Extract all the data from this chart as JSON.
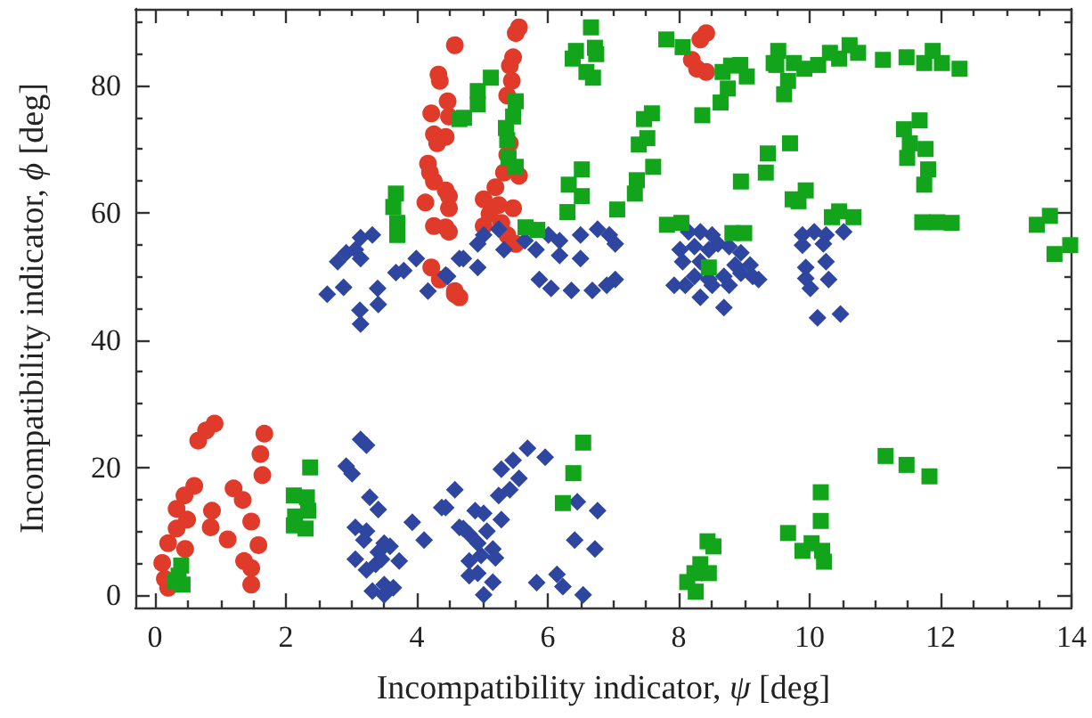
{
  "chart_data": {
    "type": "scatter",
    "xlabel": "Incompatibility indicator, ψ [deg]",
    "ylabel": "Incompatibility indicator, ϕ [deg]",
    "xlim": [
      -0.3,
      14
    ],
    "ylim": [
      -2,
      92
    ],
    "grid": false,
    "xticks": [
      0,
      {
        "value": 0.5,
        "label": null
      },
      {
        "value": 1,
        "label": null
      },
      {
        "value": 1.5,
        "label": null
      },
      2,
      {
        "value": 2.5,
        "label": null
      },
      {
        "value": 3,
        "label": null
      },
      {
        "value": 3.5,
        "label": null
      },
      4,
      {
        "value": 4.5,
        "label": null
      },
      {
        "value": 5,
        "label": null
      },
      {
        "value": 5.5,
        "label": null
      },
      6,
      {
        "value": 6.5,
        "label": null
      },
      {
        "value": 7,
        "label": null
      },
      {
        "value": 7.5,
        "label": null
      },
      8,
      {
        "value": 8.5,
        "label": null
      },
      {
        "value": 9,
        "label": null
      },
      {
        "value": 9.5,
        "label": null
      },
      10,
      {
        "value": 10.5,
        "label": null
      },
      {
        "value": 11,
        "label": null
      },
      {
        "value": 11.5,
        "label": null
      },
      12,
      {
        "value": 12.5,
        "label": null
      },
      {
        "value": 13,
        "label": null
      },
      {
        "value": 13.5,
        "label": null
      },
      14
    ],
    "yticks": [
      0,
      {
        "value": 5,
        "label": null
      },
      {
        "value": 10,
        "label": null
      },
      {
        "value": 15,
        "label": null
      },
      20,
      {
        "value": 25,
        "label": null
      },
      {
        "value": 30,
        "label": null
      },
      {
        "value": 35,
        "label": null
      },
      40,
      {
        "value": 45,
        "label": null
      },
      {
        "value": 50,
        "label": null
      },
      {
        "value": 55,
        "label": null
      },
      60,
      {
        "value": 65,
        "label": null
      },
      {
        "value": 70,
        "label": null
      },
      {
        "value": 75,
        "label": null
      },
      80,
      {
        "value": 85,
        "label": null
      },
      {
        "value": 90,
        "label": null
      }
    ],
    "series": [
      {
        "color": "#e03a2a",
        "marker": "circle",
        "x": [
          0.91,
          0.78,
          0.66,
          0.6,
          0.45,
          0.33,
          0.49,
          0.33,
          0.2,
          0.46,
          0.11,
          0.15,
          0.2,
          0.87,
          0.85,
          1.11,
          1.2,
          1.34,
          1.47,
          1.58,
          1.36,
          1.47,
          1.47,
          1.67,
          1.61,
          1.64,
          4.58,
          4.33,
          4.35,
          4.47,
          4.22,
          4.49,
          4.26,
          4.44,
          4.31,
          4.17,
          4.2,
          4.26,
          4.44,
          4.13,
          4.49,
          4.26,
          4.44,
          4.22,
          4.35,
          4.58,
          5.56,
          5.51,
          5.47,
          5.42,
          5.45,
          5.38,
          5.42,
          5.38,
          5.33,
          5.56,
          5.2,
          5.02,
          5.25,
          5.47,
          5.11,
          5.29,
          5.02,
          5.38,
          5.51,
          4.49,
          4.49,
          4.58,
          4.65,
          8.42,
          8.33,
          8.2,
          8.28,
          8.42
        ],
        "values": [
          26.9,
          25.8,
          24.2,
          17.1,
          15.6,
          13.5,
          11.8,
          10.4,
          8.1,
          7.2,
          5.0,
          2.5,
          1.1,
          13.2,
          10.6,
          8.7,
          16.7,
          14.9,
          11.5,
          7.8,
          5.3,
          4.2,
          1.6,
          25.3,
          22.1,
          18.8,
          86.3,
          81.7,
          80.7,
          77.5,
          75.6,
          75.1,
          72.3,
          71.9,
          70.9,
          67.7,
          66.3,
          64.9,
          63.5,
          61.6,
          60.7,
          57.9,
          57.7,
          51.4,
          49.5,
          47.2,
          89.1,
          88.2,
          84.4,
          83.1,
          80.7,
          78.4,
          70.9,
          69.1,
          66.3,
          65.8,
          64.0,
          62.1,
          61.2,
          60.7,
          59.8,
          58.4,
          57.9,
          56.5,
          55.1,
          62.6,
          57.0,
          47.7,
          46.7,
          88.2,
          87.2,
          84.0,
          82.6,
          82.1
        ]
      },
      {
        "color": "#2e46a0",
        "marker": "diamond",
        "x": [
          2.63,
          2.88,
          2.79,
          2.92,
          3.06,
          3.14,
          3.32,
          3.14,
          3.4,
          3.41,
          3.13,
          3.14,
          3.68,
          3.8,
          3.99,
          4.17,
          4.44,
          4.65,
          4.71,
          4.93,
          5.02,
          5.25,
          5.33,
          4.93,
          5.65,
          5.82,
          6.01,
          6.18,
          6.18,
          6.5,
          6.5,
          6.76,
          6.94,
          7.03,
          4.47,
          5.87,
          6.05,
          6.36,
          6.68,
          6.9,
          7.03,
          8.15,
          8.33,
          8.51,
          8.6,
          8.24,
          8.46,
          8.77,
          8.02,
          8.06,
          8.33,
          8.95,
          8.86,
          9.09,
          8.24,
          8.46,
          8.69,
          8.95,
          9.13,
          9.22,
          7.93,
          8.1,
          8.51,
          8.77,
          8.33,
          8.69,
          9.89,
          10.07,
          10.25,
          10.52,
          9.89,
          10.21,
          9.94,
          10.25,
          9.94,
          10.29,
          10.01,
          10.12,
          10.47,
          3.14,
          3.23,
          2.92,
          3.01,
          3.28,
          3.41,
          3.06,
          3.23,
          3.19,
          3.5,
          3.59,
          3.41,
          3.06,
          3.23,
          3.37,
          3.46,
          3.73,
          3.32,
          3.5,
          3.64,
          3.5,
          3.93,
          4.11,
          4.38,
          4.58,
          4.65,
          4.44,
          4.89,
          5.02,
          5.25,
          5.42,
          5.56,
          5.29,
          5.47,
          5.69,
          5.96,
          4.71,
          4.8,
          5.07,
          5.29,
          4.93,
          5.16,
          4.98,
          5.2,
          4.8,
          4.8,
          4.93,
          5.16,
          5.02,
          5.83,
          6.14,
          6.23,
          6.54,
          6.45,
          6.76,
          6.41,
          6.72
        ],
        "values": [
          47.2,
          48.3,
          52.3,
          53.7,
          54.2,
          56.1,
          56.5,
          52.8,
          48.1,
          45.6,
          44.7,
          42.5,
          50.6,
          50.9,
          52.8,
          47.7,
          50.2,
          52.8,
          52.8,
          55.1,
          56.5,
          57.4,
          54.2,
          51.4,
          55.6,
          54.2,
          56.5,
          55.6,
          53.3,
          56.5,
          52.8,
          57.4,
          56.5,
          55.1,
          50.0,
          49.5,
          48.1,
          47.8,
          47.8,
          48.6,
          49.5,
          57.0,
          57.0,
          56.5,
          55.1,
          54.7,
          54.2,
          54.7,
          54.2,
          52.3,
          52.3,
          53.7,
          51.8,
          51.8,
          50.0,
          49.5,
          50.0,
          50.5,
          50.0,
          49.5,
          48.6,
          48.6,
          48.6,
          48.6,
          46.7,
          45.1,
          56.5,
          57.0,
          56.5,
          57.0,
          54.9,
          55.1,
          51.4,
          52.3,
          49.7,
          49.5,
          48.1,
          43.5,
          44.1,
          24.4,
          23.5,
          20.2,
          19.0,
          15.3,
          13.4,
          10.6,
          10.0,
          8.6,
          8.1,
          7.6,
          6.7,
          5.6,
          3.9,
          4.8,
          5.6,
          5.3,
          0.6,
          0.0,
          1.1,
          1.6,
          11.4,
          8.6,
          13.7,
          16.5,
          10.6,
          13.7,
          13.2,
          12.8,
          15.6,
          16.5,
          18.3,
          19.7,
          21.1,
          23.0,
          21.6,
          10.4,
          9.5,
          10.0,
          11.8,
          8.1,
          7.2,
          6.2,
          5.8,
          5.3,
          3.0,
          3.4,
          2.0,
          0.0,
          1.9,
          3.2,
          1.3,
          0.0,
          14.6,
          13.2,
          8.6,
          7.2
        ]
      },
      {
        "color": "#12a51c",
        "marker": "square",
        "x": [
          0.4,
          0.36,
          0.42,
          0.31,
          2.37,
          2.12,
          2.32,
          2.34,
          2.14,
          2.12,
          2.3,
          6.54,
          6.39,
          6.23,
          8.44,
          8.53,
          8.33,
          8.46,
          8.24,
          8.13,
          8.26,
          9.67,
          9.89,
          10.03,
          10.19,
          10.22,
          10.17,
          10.17,
          11.16,
          11.48,
          11.83,
          3.68,
          3.64,
          3.7,
          3.7,
          4.65,
          6.66,
          6.43,
          6.38,
          6.72,
          6.74,
          6.59,
          6.69,
          5.13,
          4.93,
          4.93,
          4.72,
          5.51,
          5.47,
          5.36,
          5.38,
          5.4,
          5.51,
          5.66,
          5.84,
          6.32,
          6.52,
          6.52,
          6.3,
          7.06,
          7.33,
          7.36,
          7.61,
          7.39,
          7.52,
          7.47,
          7.59,
          7.81,
          8.06,
          7.82,
          8.04,
          8.36,
          8.64,
          8.75,
          8.67,
          8.8,
          8.94,
          9.04,
          9.52,
          9.45,
          9.67,
          9.61,
          9.36,
          9.33,
          8.95,
          9.7,
          9.74,
          8.82,
          9.0,
          8.46,
          9.49,
          9.76,
          9.92,
          10.13,
          10.31,
          10.45,
          10.61,
          10.74,
          11.12,
          11.48,
          11.88,
          11.75,
          12.02,
          12.29,
          9.94,
          9.83,
          10.34,
          10.45,
          10.67,
          11.68,
          11.44,
          11.53,
          11.77,
          11.49,
          11.81,
          11.75,
          11.72,
          11.95,
          12.17,
          13.47,
          13.67,
          13.74,
          13.98
        ],
        "values": [
          4.6,
          3.0,
          1.6,
          2.2,
          20.0,
          15.6,
          15.3,
          13.2,
          12.3,
          10.9,
          10.4,
          23.9,
          19.1,
          14.4,
          8.4,
          7.6,
          4.8,
          3.4,
          3.4,
          2.0,
          0.5,
          9.7,
          6.9,
          8.1,
          6.9,
          5.2,
          11.6,
          16.1,
          21.8,
          20.4,
          18.6,
          63.0,
          60.9,
          58.4,
          56.5,
          74.7,
          89.1,
          85.4,
          84.2,
          85.9,
          84.9,
          82.1,
          81.2,
          81.2,
          79.1,
          77.0,
          74.9,
          77.5,
          75.1,
          73.3,
          71.4,
          68.6,
          67.2,
          57.7,
          57.3,
          64.4,
          66.8,
          62.6,
          60.1,
          60.5,
          63.0,
          65.1,
          67.2,
          70.7,
          71.7,
          74.7,
          75.6,
          87.2,
          86.0,
          58.1,
          58.4,
          75.3,
          77.3,
          79.5,
          82.1,
          83.1,
          83.2,
          81.4,
          85.4,
          83.5,
          80.7,
          78.6,
          69.3,
          66.3,
          64.9,
          70.9,
          62.1,
          56.8,
          56.8,
          51.4,
          83.2,
          83.5,
          82.6,
          83.2,
          85.1,
          84.2,
          86.3,
          85.1,
          84.0,
          84.4,
          85.4,
          83.5,
          83.5,
          82.6,
          63.5,
          61.8,
          59.3,
          60.2,
          59.3,
          74.5,
          73.1,
          70.9,
          70.0,
          68.6,
          66.8,
          64.4,
          58.5,
          58.5,
          58.4,
          58.1,
          59.5,
          53.5,
          54.9
        ]
      }
    ]
  }
}
